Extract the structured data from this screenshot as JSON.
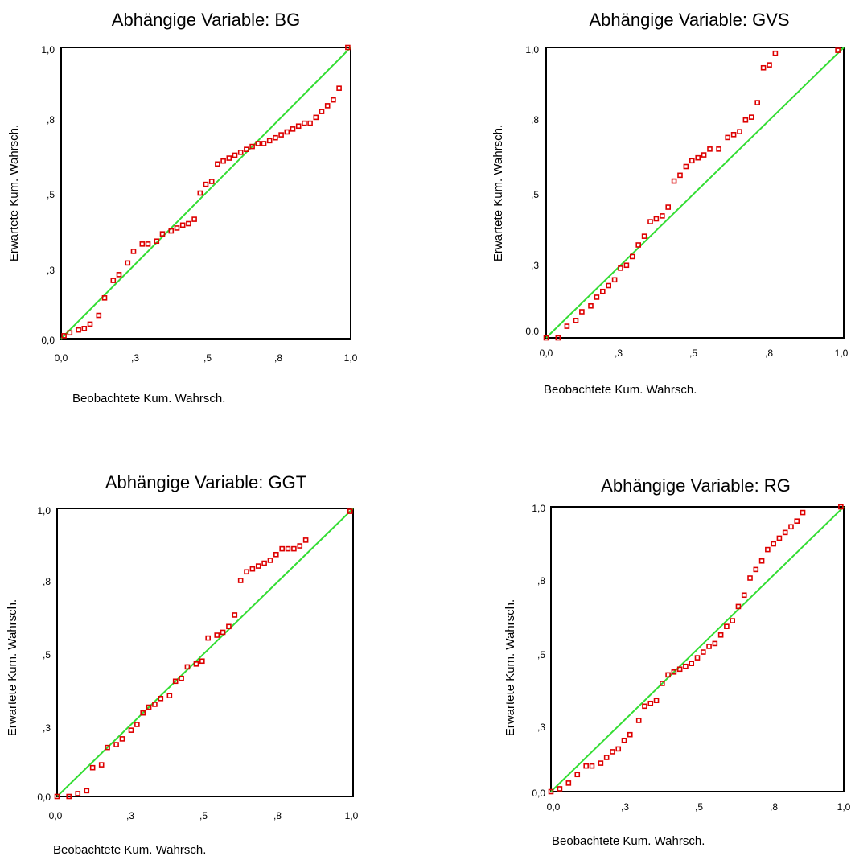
{
  "chart_data": [
    {
      "type": "scatter",
      "title": "Abhängige Variable: BG",
      "xlabel": "Beobachtete Kum.  Wahrsch.",
      "ylabel": "Erwartete Kum.  Wahrsch.",
      "xlim": [
        0,
        1
      ],
      "ylim": [
        0,
        1
      ],
      "xticks": [
        "0,0",
        ",3",
        ",5",
        ",8",
        "1,0"
      ],
      "yticks": [
        "0,0",
        ",3",
        ",5",
        ",8",
        "1,0"
      ],
      "reference_line": [
        [
          0,
          0
        ],
        [
          1,
          1
        ]
      ],
      "points": [
        [
          0.01,
          0.01
        ],
        [
          0.03,
          0.02
        ],
        [
          0.06,
          0.03
        ],
        [
          0.08,
          0.035
        ],
        [
          0.1,
          0.05
        ],
        [
          0.13,
          0.08
        ],
        [
          0.15,
          0.14
        ],
        [
          0.18,
          0.2
        ],
        [
          0.2,
          0.22
        ],
        [
          0.23,
          0.26
        ],
        [
          0.25,
          0.3
        ],
        [
          0.28,
          0.325
        ],
        [
          0.3,
          0.325
        ],
        [
          0.33,
          0.335
        ],
        [
          0.35,
          0.36
        ],
        [
          0.38,
          0.37
        ],
        [
          0.4,
          0.38
        ],
        [
          0.42,
          0.39
        ],
        [
          0.44,
          0.395
        ],
        [
          0.46,
          0.41
        ],
        [
          0.48,
          0.5
        ],
        [
          0.5,
          0.53
        ],
        [
          0.52,
          0.54
        ],
        [
          0.54,
          0.6
        ],
        [
          0.56,
          0.61
        ],
        [
          0.58,
          0.62
        ],
        [
          0.6,
          0.63
        ],
        [
          0.62,
          0.64
        ],
        [
          0.64,
          0.65
        ],
        [
          0.66,
          0.66
        ],
        [
          0.68,
          0.67
        ],
        [
          0.7,
          0.67
        ],
        [
          0.72,
          0.68
        ],
        [
          0.74,
          0.69
        ],
        [
          0.76,
          0.7
        ],
        [
          0.78,
          0.71
        ],
        [
          0.8,
          0.72
        ],
        [
          0.82,
          0.73
        ],
        [
          0.84,
          0.74
        ],
        [
          0.86,
          0.74
        ],
        [
          0.88,
          0.76
        ],
        [
          0.9,
          0.78
        ],
        [
          0.92,
          0.8
        ],
        [
          0.94,
          0.82
        ],
        [
          0.96,
          0.86
        ],
        [
          0.99,
          1.0
        ]
      ]
    },
    {
      "type": "scatter",
      "title": "Abhängige Variable: GVS",
      "xlabel": "Beobachtete Kum.  Wahrsch.",
      "ylabel": "Erwartete Kum.  Wahrsch.",
      "xlim": [
        0,
        1
      ],
      "ylim": [
        0,
        1
      ],
      "xticks": [
        "0,0",
        ",3",
        ",5",
        ",8",
        "1,0"
      ],
      "yticks": [
        "0,0",
        ",3",
        ",5",
        ",8",
        "1,0"
      ],
      "reference_line": [
        [
          0,
          0
        ],
        [
          1,
          1
        ]
      ],
      "points": [
        [
          0.0,
          0.0
        ],
        [
          0.04,
          0.0
        ],
        [
          0.07,
          0.04
        ],
        [
          0.1,
          0.06
        ],
        [
          0.12,
          0.09
        ],
        [
          0.15,
          0.11
        ],
        [
          0.17,
          0.14
        ],
        [
          0.19,
          0.16
        ],
        [
          0.21,
          0.18
        ],
        [
          0.23,
          0.2
        ],
        [
          0.25,
          0.24
        ],
        [
          0.27,
          0.25
        ],
        [
          0.29,
          0.28
        ],
        [
          0.31,
          0.32
        ],
        [
          0.33,
          0.35
        ],
        [
          0.35,
          0.4
        ],
        [
          0.37,
          0.41
        ],
        [
          0.39,
          0.42
        ],
        [
          0.41,
          0.45
        ],
        [
          0.43,
          0.54
        ],
        [
          0.45,
          0.56
        ],
        [
          0.47,
          0.59
        ],
        [
          0.49,
          0.61
        ],
        [
          0.51,
          0.62
        ],
        [
          0.53,
          0.63
        ],
        [
          0.55,
          0.65
        ],
        [
          0.58,
          0.65
        ],
        [
          0.61,
          0.69
        ],
        [
          0.63,
          0.7
        ],
        [
          0.65,
          0.71
        ],
        [
          0.67,
          0.75
        ],
        [
          0.69,
          0.76
        ],
        [
          0.71,
          0.81
        ],
        [
          0.73,
          0.93
        ],
        [
          0.75,
          0.94
        ],
        [
          0.77,
          0.98
        ],
        [
          0.98,
          0.99
        ]
      ]
    },
    {
      "type": "scatter",
      "title": "Abhängige Variable: GGT",
      "xlabel": "Beobachtete Kum.  Wahrsch.",
      "ylabel": "Erwartete Kum.  Wahrsch.",
      "xlim": [
        0,
        1
      ],
      "ylim": [
        0,
        1
      ],
      "xticks": [
        "0,0",
        ",3",
        ",5",
        ",8",
        "1,0"
      ],
      "yticks": [
        "0,0",
        ",3",
        ",5",
        ",8",
        "1,0"
      ],
      "reference_line": [
        [
          0,
          0
        ],
        [
          1,
          1
        ]
      ],
      "points": [
        [
          0.0,
          0.0
        ],
        [
          0.04,
          0.0
        ],
        [
          0.07,
          0.01
        ],
        [
          0.1,
          0.02
        ],
        [
          0.12,
          0.1
        ],
        [
          0.15,
          0.11
        ],
        [
          0.17,
          0.17
        ],
        [
          0.2,
          0.18
        ],
        [
          0.22,
          0.2
        ],
        [
          0.25,
          0.23
        ],
        [
          0.27,
          0.25
        ],
        [
          0.29,
          0.29
        ],
        [
          0.31,
          0.31
        ],
        [
          0.33,
          0.32
        ],
        [
          0.35,
          0.34
        ],
        [
          0.38,
          0.35
        ],
        [
          0.4,
          0.4
        ],
        [
          0.42,
          0.41
        ],
        [
          0.44,
          0.45
        ],
        [
          0.47,
          0.46
        ],
        [
          0.49,
          0.47
        ],
        [
          0.51,
          0.55
        ],
        [
          0.54,
          0.56
        ],
        [
          0.56,
          0.57
        ],
        [
          0.58,
          0.59
        ],
        [
          0.6,
          0.63
        ],
        [
          0.62,
          0.75
        ],
        [
          0.64,
          0.78
        ],
        [
          0.66,
          0.79
        ],
        [
          0.68,
          0.8
        ],
        [
          0.7,
          0.81
        ],
        [
          0.72,
          0.82
        ],
        [
          0.74,
          0.84
        ],
        [
          0.76,
          0.86
        ],
        [
          0.78,
          0.86
        ],
        [
          0.8,
          0.86
        ],
        [
          0.82,
          0.87
        ],
        [
          0.84,
          0.89
        ],
        [
          0.99,
          0.99
        ]
      ]
    },
    {
      "type": "scatter",
      "title": "Abhängige Variable: RG",
      "xlabel": "Beobachtete Kum.  Wahrsch.",
      "ylabel": "Erwartete Kum.  Wahrsch.",
      "xlim": [
        0,
        1
      ],
      "ylim": [
        0,
        1
      ],
      "xticks": [
        "0,0",
        ",3",
        ",5",
        ",8",
        "1,0"
      ],
      "yticks": [
        "0,0",
        ",3",
        ",5",
        ",8",
        "1,0"
      ],
      "reference_line": [
        [
          0,
          0
        ],
        [
          1,
          1
        ]
      ],
      "points": [
        [
          0.0,
          0.0
        ],
        [
          0.03,
          0.01
        ],
        [
          0.06,
          0.03
        ],
        [
          0.09,
          0.06
        ],
        [
          0.12,
          0.09
        ],
        [
          0.14,
          0.09
        ],
        [
          0.17,
          0.1
        ],
        [
          0.19,
          0.12
        ],
        [
          0.21,
          0.14
        ],
        [
          0.23,
          0.15
        ],
        [
          0.25,
          0.18
        ],
        [
          0.27,
          0.2
        ],
        [
          0.3,
          0.25
        ],
        [
          0.32,
          0.3
        ],
        [
          0.34,
          0.31
        ],
        [
          0.36,
          0.32
        ],
        [
          0.38,
          0.38
        ],
        [
          0.4,
          0.41
        ],
        [
          0.42,
          0.42
        ],
        [
          0.44,
          0.43
        ],
        [
          0.46,
          0.44
        ],
        [
          0.48,
          0.45
        ],
        [
          0.5,
          0.47
        ],
        [
          0.52,
          0.49
        ],
        [
          0.54,
          0.51
        ],
        [
          0.56,
          0.52
        ],
        [
          0.58,
          0.55
        ],
        [
          0.6,
          0.58
        ],
        [
          0.62,
          0.6
        ],
        [
          0.64,
          0.65
        ],
        [
          0.66,
          0.69
        ],
        [
          0.68,
          0.75
        ],
        [
          0.7,
          0.78
        ],
        [
          0.72,
          0.81
        ],
        [
          0.74,
          0.85
        ],
        [
          0.76,
          0.87
        ],
        [
          0.78,
          0.89
        ],
        [
          0.8,
          0.91
        ],
        [
          0.82,
          0.93
        ],
        [
          0.84,
          0.95
        ],
        [
          0.86,
          0.98
        ],
        [
          0.99,
          1.0
        ]
      ]
    }
  ],
  "colors": {
    "reference_line": "#33dd33",
    "marker": "#dd0000",
    "axis": "#000000"
  }
}
